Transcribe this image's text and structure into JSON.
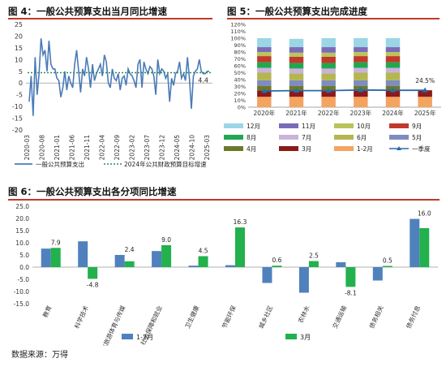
{
  "titles": {
    "fig4": "图 4：一般公共预算支出当月同比增速",
    "fig5": "图 5：一般公共预算支出完成进度",
    "fig6": "图 6：一般公共预算支出各分项同比增速"
  },
  "source": "数据来源：万得",
  "colors": {
    "rule": "#c0392b",
    "line": "#4a7bb7",
    "target": "#2e8b57",
    "bar1": "#4f81bd",
    "bar2": "#22b14c"
  },
  "chart_data": [
    {
      "id": "fig4",
      "type": "line",
      "title": "图 4：一般公共预算支出当月同比增速",
      "x_ticks": [
        "2020-03",
        "2020-08",
        "2021-01",
        "2021-06",
        "2021-11",
        "2022-04",
        "2022-09",
        "2023-02",
        "2023-07",
        "2023-12",
        "2024-05",
        "2024-10",
        "2025-03"
      ],
      "ylim": [
        -20,
        25
      ],
      "y_ticks": [
        -20,
        -15,
        -10,
        -5,
        0,
        5,
        10,
        15,
        20,
        25
      ],
      "annotation": "4.4",
      "series": [
        {
          "name": "一般公共预算支出",
          "style": "solid",
          "values": [
            -8,
            3,
            -14,
            11,
            -5,
            4,
            19,
            12,
            14,
            5,
            18,
            8,
            6,
            6,
            2,
            1,
            -6,
            -2,
            5,
            -3,
            3,
            0,
            -2,
            8,
            14,
            5,
            -4,
            6,
            3,
            11,
            6,
            -2,
            8,
            1,
            4,
            6,
            8,
            3,
            12,
            9,
            0,
            -2,
            6,
            2,
            1,
            4,
            -3,
            2,
            3,
            -1,
            6,
            4,
            3,
            1,
            -2,
            8,
            10,
            -2,
            9,
            6,
            4,
            7,
            6,
            3,
            -5,
            10,
            4,
            6,
            5,
            2,
            4,
            -8,
            2,
            -1,
            4,
            5,
            9,
            2,
            4,
            1,
            11,
            2,
            -11,
            3,
            5,
            6,
            10,
            5,
            4,
            4,
            5,
            5
          ]
        },
        {
          "name": "2024年公共财政预算目标增速",
          "style": "dashed",
          "values": [
            4.4
          ]
        }
      ]
    },
    {
      "id": "fig5",
      "type": "bar",
      "stacked": true,
      "title": "图 5：一般公共预算支出完成进度",
      "categories": [
        "2020年",
        "2021年",
        "2022年",
        "2023年",
        "2024年",
        "2025年"
      ],
      "ylim": [
        0,
        120
      ],
      "y_ticks": [
        "0%",
        "10%",
        "20%",
        "30%",
        "40%",
        "50%",
        "60%",
        "70%",
        "80%",
        "90%",
        "100%",
        "110%",
        "120%"
      ],
      "series": [
        {
          "name": "1-2月",
          "color": "#f4a460",
          "values": [
            15,
            15,
            15,
            15,
            15,
            15
          ]
        },
        {
          "name": "3月",
          "color": "#8b1a1a",
          "values": [
            9,
            9,
            9,
            9,
            9,
            9.5
          ]
        },
        {
          "name": "4月",
          "color": "#6b7a2a",
          "values": [
            7,
            7,
            7,
            7,
            7,
            0
          ]
        },
        {
          "name": "5月",
          "color": "#7f8cc0",
          "values": [
            8,
            8,
            8,
            8,
            8,
            0
          ]
        },
        {
          "name": "6月",
          "color": "#b4b64f",
          "values": [
            11,
            10,
            10,
            11,
            11,
            0
          ]
        },
        {
          "name": "7月",
          "color": "#c9b3dd",
          "values": [
            7,
            7,
            7,
            7,
            7,
            0
          ]
        },
        {
          "name": "8月",
          "color": "#1fa84f",
          "values": [
            8,
            8,
            8,
            8,
            8,
            0
          ]
        },
        {
          "name": "9月",
          "color": "#c0392b",
          "values": [
            9,
            9,
            9,
            9,
            9,
            0
          ]
        },
        {
          "name": "10月",
          "color": "#b9c45c",
          "values": [
            6,
            6,
            6,
            6,
            6,
            0
          ]
        },
        {
          "name": "11月",
          "color": "#7b6bb8",
          "values": [
            7,
            8,
            8,
            7,
            7,
            0
          ]
        },
        {
          "name": "12月",
          "color": "#9ad6e6",
          "values": [
            13,
            12,
            13,
            13,
            13,
            0
          ]
        },
        {
          "name": "一季度",
          "type": "line",
          "color": "#2a6aa8",
          "values": [
            23.5,
            24,
            24,
            25,
            24.5,
            24.5
          ]
        }
      ],
      "data_labels": [
        "24.5%"
      ]
    },
    {
      "id": "fig6",
      "type": "bar",
      "title": "图 6：一般公共预算支出各分项同比增速",
      "categories": [
        "教育",
        "科学技术",
        "文化旅游体育与传媒",
        "社会保障和就业",
        "卫生健康",
        "节能环保",
        "城乡社区",
        "农林水",
        "交通运输",
        "债务相关",
        "债务付息"
      ],
      "ylim": [
        -15,
        25
      ],
      "y_ticks": [
        "-15.0",
        "-10.0",
        "-5.0",
        "0.0",
        "5.0",
        "10.0",
        "15.0",
        "20.0",
        "25.0"
      ],
      "series": [
        {
          "name": "1-2月",
          "color": "#4f81bd",
          "values": [
            7.6,
            10.6,
            5.0,
            6.6,
            0.6,
            0.8,
            -6.5,
            -10.5,
            2.0,
            -5.5,
            19.8
          ]
        },
        {
          "name": "3月",
          "color": "#22b14c",
          "values": [
            7.9,
            -4.8,
            2.4,
            9.0,
            4.5,
            16.3,
            0.6,
            2.5,
            -8.1,
            0.5,
            16.0
          ]
        }
      ],
      "data_labels": [
        "7.9",
        "-4.8",
        "2.4",
        "9.0",
        "4.5",
        "16.3",
        "0.6",
        "2.5",
        "-8.1",
        "0.5",
        "16.0"
      ]
    }
  ]
}
